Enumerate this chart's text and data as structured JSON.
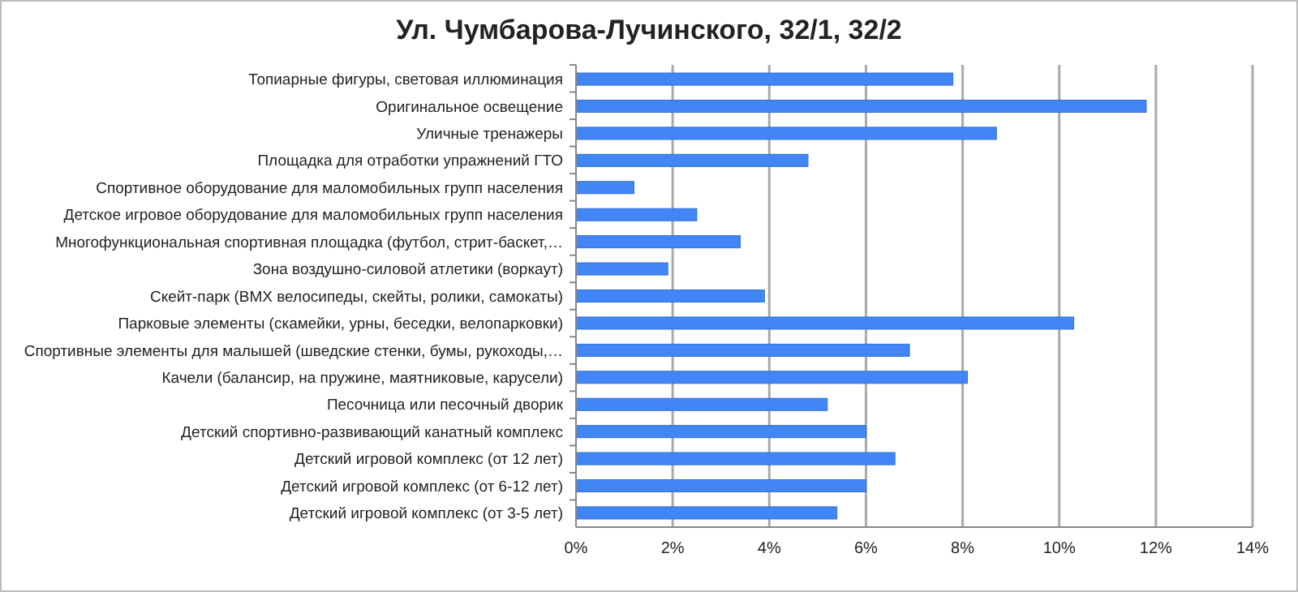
{
  "chart_data": {
    "type": "bar",
    "orientation": "horizontal",
    "title": "Ул. Чумбарова-Лучинского, 32/1, 32/2",
    "categories": [
      "Топиарные фигуры, световая иллюминация",
      "Оригинальное освещение",
      "Уличные тренажеры",
      "Площадка для отработки упражнений ГТО",
      "Спортивное оборудование для маломобильных групп населения",
      "Детское игровое оборудование для маломобильных групп населения",
      "Многофункциональная спортивная площадка (футбол, стрит-баскет,…",
      "Зона воздушно-силовой атлетики (воркаут)",
      "Скейт-парк (BMX велосипеды, скейты, ролики, самокаты)",
      "Парковые элементы (скамейки, урны, беседки, велопарковки)",
      "Спортивные элементы для малышей (шведские стенки, бумы, рукоходы,…",
      "Качели (балансир, на пружине, маятниковые, карусели)",
      "Песочница или песочный дворик",
      "Детский спортивно-развивающий канатный комплекс",
      "Детский игровой комплекс (от 12 лет)",
      "Детский игровой комплекс (от 6-12 лет)",
      "Детский игровой комплекс (от 3-5 лет)"
    ],
    "values": [
      7.8,
      11.8,
      8.7,
      4.8,
      1.2,
      2.5,
      3.4,
      1.9,
      3.9,
      10.3,
      6.9,
      8.1,
      5.2,
      6.0,
      6.6,
      6.0,
      5.4
    ],
    "color": "#4285f4",
    "xlim": [
      0,
      14
    ],
    "xticks": [
      {
        "value": 0,
        "label": "0%"
      },
      {
        "value": 2,
        "label": "2%"
      },
      {
        "value": 4,
        "label": "4%"
      },
      {
        "value": 6,
        "label": "6%"
      },
      {
        "value": 8,
        "label": "8%"
      },
      {
        "value": 10,
        "label": "10%"
      },
      {
        "value": 12,
        "label": "12%"
      },
      {
        "value": 14,
        "label": "14%"
      }
    ],
    "grid": "x"
  }
}
